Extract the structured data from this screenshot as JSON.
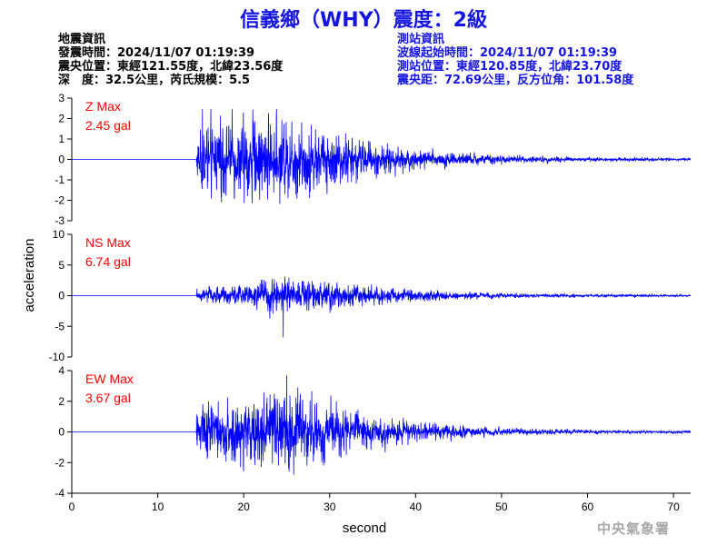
{
  "title": "信義鄉（WHY）震度：2級",
  "quake_info": {
    "heading": "地震資訊",
    "origin_time": "發震時間：2024/11/07 01:19:39",
    "epicenter": "震央位置：東經121.55度，北緯23.56度",
    "depth_magnitude": "深　度：32.5公里，芮氏規模：5.5"
  },
  "station_info": {
    "heading": "測站資訊",
    "wave_start": "波線起始時間：2024/11/07 01:19:39",
    "location": "測站位置：東經120.85度，北緯23.70度",
    "distance": "震央距：72.69公里，反方位角：101.58度"
  },
  "credit": "中央氣象署",
  "colors": {
    "trace": "#0000ff",
    "max_label": "#ff0000",
    "title": "#1515e0",
    "axis": "#000000"
  },
  "chart_data": [
    {
      "type": "line",
      "component": "Z",
      "max_label": "Z Max",
      "max_value": "2.45 gal",
      "ylim": [
        -3,
        3
      ],
      "yticks": [
        -3,
        -2,
        -1,
        0,
        1,
        2,
        3
      ],
      "xlim": [
        0,
        72
      ],
      "onset_s": 14.5,
      "peak_time_s": 15.2,
      "peak": 2.45,
      "envelope": [
        [
          14.5,
          0.9
        ],
        [
          15.5,
          1.4
        ],
        [
          18,
          1.3
        ],
        [
          21,
          1.6
        ],
        [
          23,
          1.4
        ],
        [
          26,
          1.4
        ],
        [
          28,
          1.2
        ],
        [
          31,
          1.0
        ],
        [
          35,
          0.6
        ],
        [
          40,
          0.4
        ],
        [
          45,
          0.25
        ],
        [
          50,
          0.15
        ],
        [
          60,
          0.08
        ],
        [
          72,
          0.05
        ]
      ]
    },
    {
      "type": "line",
      "component": "NS",
      "max_label": "NS Max",
      "max_value": "6.74 gal",
      "ylim": [
        -10,
        10
      ],
      "yticks": [
        -10,
        -5,
        0,
        5,
        10
      ],
      "xlim": [
        0,
        72
      ],
      "onset_s": 14.5,
      "peak_time_s": 24.6,
      "peak": -6.74,
      "envelope": [
        [
          14.5,
          0.8
        ],
        [
          17,
          1.0
        ],
        [
          20,
          1.2
        ],
        [
          22,
          1.8
        ],
        [
          24,
          2.6
        ],
        [
          26,
          2.0
        ],
        [
          28,
          2.0
        ],
        [
          31,
          1.6
        ],
        [
          35,
          1.0
        ],
        [
          40,
          0.7
        ],
        [
          45,
          0.5
        ],
        [
          50,
          0.3
        ],
        [
          60,
          0.2
        ],
        [
          72,
          0.15
        ]
      ]
    },
    {
      "type": "line",
      "component": "EW",
      "max_label": "EW Max",
      "max_value": "3.67 gal",
      "ylim": [
        -4,
        4
      ],
      "yticks": [
        -4,
        -2,
        0,
        2,
        4
      ],
      "xlim": [
        0,
        72
      ],
      "onset_s": 14.5,
      "peak_time_s": 25.0,
      "peak": 3.67,
      "envelope": [
        [
          14.5,
          1.2
        ],
        [
          16,
          1.6
        ],
        [
          18,
          1.5
        ],
        [
          21,
          1.7
        ],
        [
          23,
          1.9
        ],
        [
          25,
          2.0
        ],
        [
          27,
          1.8
        ],
        [
          29,
          1.5
        ],
        [
          32,
          1.1
        ],
        [
          36,
          0.7
        ],
        [
          40,
          0.45
        ],
        [
          45,
          0.3
        ],
        [
          50,
          0.18
        ],
        [
          60,
          0.1
        ],
        [
          72,
          0.07
        ]
      ]
    }
  ],
  "x_axis": {
    "label": "second",
    "ticks": [
      0,
      10,
      20,
      30,
      40,
      50,
      60,
      70
    ],
    "range": [
      0,
      72
    ]
  },
  "y_axis_label": "acceleration"
}
